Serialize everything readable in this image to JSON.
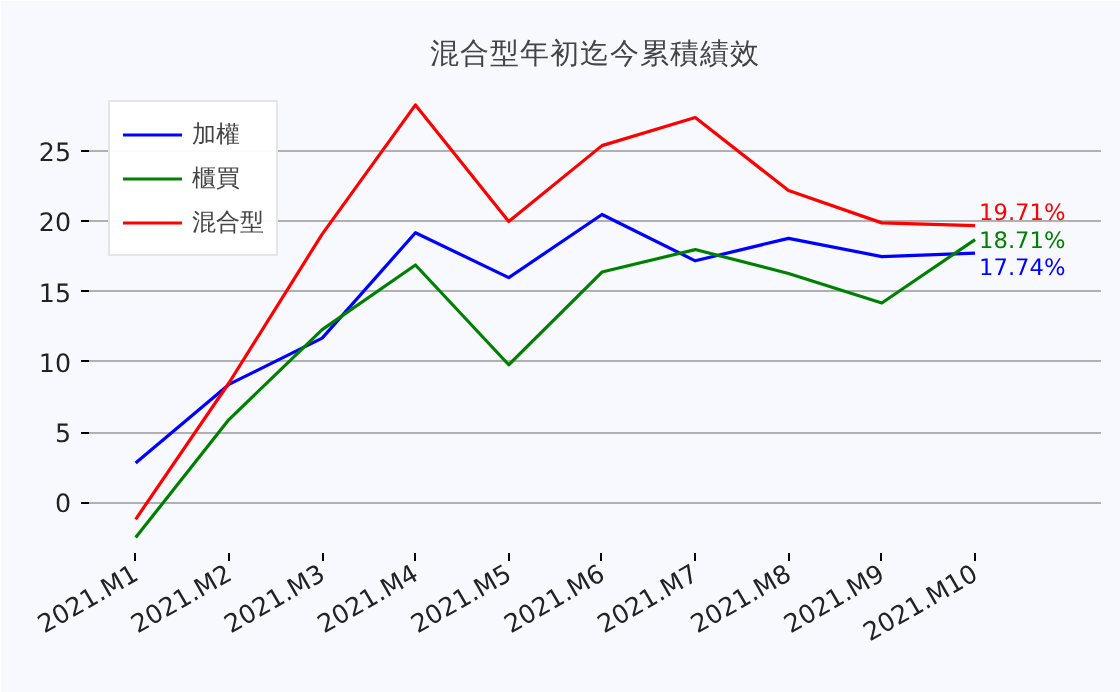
{
  "chart_data": {
    "type": "line",
    "title": "混合型年初迄今累積績效",
    "categories": [
      "2021.M1",
      "2021.M2",
      "2021.M3",
      "2021.M4",
      "2021.M5",
      "2021.M6",
      "2021.M7",
      "2021.M8",
      "2021.M9",
      "2021.M10"
    ],
    "series": [
      {
        "name": "加權",
        "color": "#0000ff",
        "values": [
          2.8,
          8.4,
          11.7,
          19.2,
          16.0,
          20.5,
          17.2,
          18.8,
          17.5,
          17.74
        ],
        "value_labels": [
          null,
          null,
          null,
          null,
          null,
          null,
          null,
          null,
          null,
          "17.74%"
        ]
      },
      {
        "name": "櫃買",
        "color": "#008000",
        "values": [
          -2.5,
          5.9,
          12.3,
          16.9,
          9.8,
          16.4,
          18.0,
          16.3,
          14.2,
          18.71
        ],
        "value_labels": [
          null,
          null,
          null,
          null,
          null,
          null,
          null,
          null,
          null,
          "18.71%"
        ]
      },
      {
        "name": "混合型",
        "color": "#ff0000",
        "values": [
          -1.2,
          8.5,
          19.1,
          28.3,
          20.0,
          25.4,
          27.4,
          22.2,
          19.9,
          19.71
        ],
        "value_labels": [
          null,
          null,
          null,
          null,
          null,
          null,
          null,
          null,
          null,
          "19.71%"
        ]
      }
    ],
    "ylim": [
      -3.6,
      30
    ],
    "yticks": [
      0,
      5,
      10,
      15,
      20,
      25
    ],
    "grid": "y",
    "legend": "top left",
    "marker": "none",
    "line_style": "solid"
  }
}
